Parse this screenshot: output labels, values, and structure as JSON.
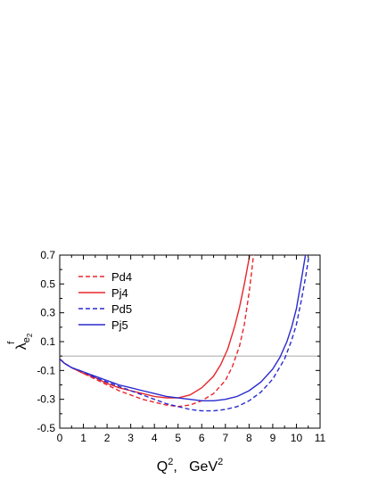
{
  "chart_data": {
    "type": "line",
    "xlabel": {
      "base": "Q",
      "sup": "2",
      "unit": "GeV",
      "unit_sup": "2",
      "sep": ",   "
    },
    "ylabel": {
      "base": "λ",
      "sup": "f",
      "sub": "e",
      "subsub": "2"
    },
    "xlim": [
      0,
      11
    ],
    "ylim": [
      -0.5,
      0.7
    ],
    "x_ticks": [
      0,
      1,
      2,
      3,
      4,
      5,
      6,
      7,
      8,
      9,
      10,
      11
    ],
    "x_tick_labels": [
      "0",
      "1",
      "2",
      "3",
      "4",
      "5",
      "6",
      "7",
      "8",
      "9",
      "10",
      "11"
    ],
    "y_ticks": [
      -0.5,
      -0.3,
      -0.1,
      0.1,
      0.3,
      0.5,
      0.7
    ],
    "y_tick_labels": [
      "-0.5",
      "-0.3",
      "-0.1",
      "0.1",
      "0.3",
      "0.5",
      "0.7"
    ],
    "reference_line": {
      "y": 0,
      "color": "#b0b0b0"
    },
    "legend_position": "top-left",
    "series": [
      {
        "name": "Pd4",
        "color": "#e8262b",
        "dash": "dashed",
        "x": [
          0,
          0.2,
          0.5,
          1,
          1.5,
          2,
          2.5,
          3,
          3.5,
          4,
          4.5,
          5,
          5.5,
          6,
          6.5,
          7,
          7.3,
          7.6,
          7.8,
          8.0,
          8.1,
          8.2
        ],
        "y": [
          -0.02,
          -0.05,
          -0.08,
          -0.12,
          -0.16,
          -0.2,
          -0.24,
          -0.27,
          -0.3,
          -0.32,
          -0.34,
          -0.35,
          -0.34,
          -0.31,
          -0.26,
          -0.17,
          -0.07,
          0.07,
          0.22,
          0.44,
          0.57,
          0.72
        ]
      },
      {
        "name": "Pj4",
        "color": "#e8262b",
        "dash": "solid",
        "x": [
          0,
          0.2,
          0.5,
          1,
          1.5,
          2,
          2.5,
          3,
          3.5,
          4,
          4.5,
          5,
          5.5,
          6,
          6.5,
          6.8,
          7.1,
          7.4,
          7.6,
          7.8,
          7.95,
          8.05
        ],
        "y": [
          -0.02,
          -0.05,
          -0.08,
          -0.12,
          -0.15,
          -0.19,
          -0.22,
          -0.24,
          -0.26,
          -0.28,
          -0.29,
          -0.29,
          -0.27,
          -0.22,
          -0.14,
          -0.06,
          0.05,
          0.21,
          0.34,
          0.5,
          0.63,
          0.72
        ]
      },
      {
        "name": "Pd5",
        "color": "#2a2ad0",
        "dash": "dashed",
        "x": [
          0,
          0.2,
          0.5,
          1,
          1.5,
          2,
          2.5,
          3,
          3.5,
          4,
          4.5,
          5,
          5.5,
          6,
          6.5,
          7,
          7.5,
          8,
          8.5,
          9,
          9.5,
          9.8,
          10,
          10.2,
          10.4,
          10.55
        ],
        "y": [
          -0.02,
          -0.05,
          -0.08,
          -0.11,
          -0.15,
          -0.18,
          -0.21,
          -0.24,
          -0.27,
          -0.3,
          -0.33,
          -0.35,
          -0.37,
          -0.38,
          -0.38,
          -0.37,
          -0.35,
          -0.31,
          -0.25,
          -0.16,
          -0.02,
          0.11,
          0.22,
          0.38,
          0.56,
          0.72
        ]
      },
      {
        "name": "Pj5",
        "color": "#2a2ad0",
        "dash": "solid",
        "x": [
          0,
          0.2,
          0.5,
          1,
          1.5,
          2,
          2.5,
          3,
          3.5,
          4,
          4.5,
          5,
          5.5,
          6,
          6.5,
          7,
          7.5,
          8,
          8.5,
          9,
          9.3,
          9.6,
          9.8,
          10,
          10.2,
          10.4
        ],
        "y": [
          -0.02,
          -0.05,
          -0.08,
          -0.11,
          -0.14,
          -0.17,
          -0.2,
          -0.22,
          -0.24,
          -0.26,
          -0.28,
          -0.29,
          -0.3,
          -0.31,
          -0.31,
          -0.3,
          -0.28,
          -0.24,
          -0.18,
          -0.09,
          -0.01,
          0.1,
          0.2,
          0.33,
          0.52,
          0.72
        ]
      }
    ]
  }
}
